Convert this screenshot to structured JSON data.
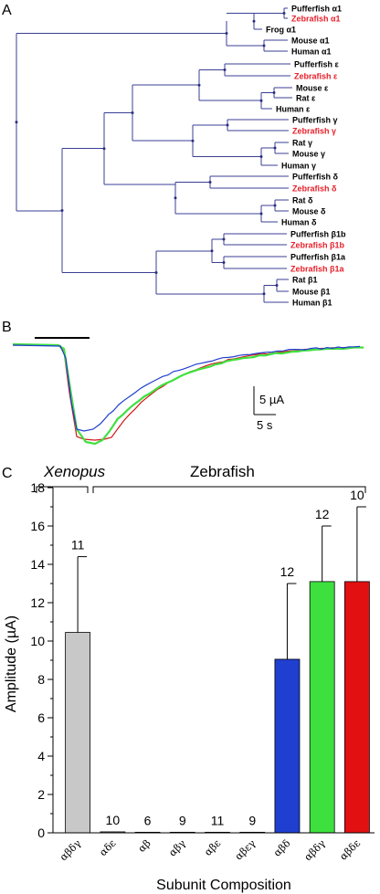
{
  "panels": {
    "a": "A",
    "b": "B",
    "c": "C"
  },
  "tree": {
    "leaves": [
      {
        "text": "Pufferfish α1",
        "color": "#000000"
      },
      {
        "text": "Zebrafish α1",
        "color": "#e8202a"
      },
      {
        "text": "Frog α1",
        "color": "#000000"
      },
      {
        "text": "Mouse α1",
        "color": "#000000"
      },
      {
        "text": "Human α1",
        "color": "#000000"
      },
      {
        "text": "Pufferfish ε",
        "color": "#000000"
      },
      {
        "text": "Zebrafish ε",
        "color": "#e8202a"
      },
      {
        "text": "Mouse ε",
        "color": "#000000"
      },
      {
        "text": "Rat ε",
        "color": "#000000"
      },
      {
        "text": "Human ε",
        "color": "#000000"
      },
      {
        "text": "Pufferfish γ",
        "color": "#000000"
      },
      {
        "text": "Zebrafish γ",
        "color": "#e8202a"
      },
      {
        "text": "Rat γ",
        "color": "#000000"
      },
      {
        "text": "Mouse γ",
        "color": "#000000"
      },
      {
        "text": "Human γ",
        "color": "#000000"
      },
      {
        "text": "Pufferfish δ",
        "color": "#000000"
      },
      {
        "text": "Zebrafish δ",
        "color": "#e8202a"
      },
      {
        "text": "Rat δ",
        "color": "#000000"
      },
      {
        "text": "Mouse δ",
        "color": "#000000"
      },
      {
        "text": "Human δ",
        "color": "#000000"
      },
      {
        "text": "Pufferfish β1b",
        "color": "#000000"
      },
      {
        "text": "Zebrafish β1b",
        "color": "#e8202a"
      },
      {
        "text": "Pufferfish β1a",
        "color": "#000000"
      },
      {
        "text": "Zebrafish β1a",
        "color": "#e8202a"
      },
      {
        "text": "Rat β1",
        "color": "#000000"
      },
      {
        "text": "Mouse β1",
        "color": "#000000"
      },
      {
        "text": "Human β1",
        "color": "#000000"
      }
    ]
  },
  "traces": {
    "scale_current": "5 µA",
    "scale_time": "5 s",
    "colors": [
      "#1f3fd0",
      "#40e040",
      "#d01818"
    ]
  },
  "chart_data": {
    "type": "bar",
    "ylabel": "Amplitude (µA)",
    "xlabel": "Subunit Composition",
    "ylim": [
      0,
      18
    ],
    "yticks": [
      0,
      2,
      4,
      6,
      8,
      10,
      12,
      14,
      16,
      18
    ],
    "groups": [
      {
        "label": "Xenopus",
        "italic": true
      },
      {
        "label": "Zebrafish",
        "italic": false
      }
    ],
    "categories": [
      "αβδγ",
      "αδε",
      "αβ",
      "αβγ",
      "αβε",
      "αβεγ",
      "αβδ",
      "αβδγ",
      "αβδε"
    ],
    "values": [
      10.45,
      0.05,
      0.03,
      0.03,
      0.03,
      0.03,
      9.05,
      13.1,
      13.1
    ],
    "error_upper": [
      14.4,
      0.05,
      0.03,
      0.03,
      0.03,
      0.03,
      13.0,
      16.0,
      17.0
    ],
    "n": [
      "11",
      "10",
      "6",
      "9",
      "11",
      "9",
      "12",
      "12",
      "10"
    ],
    "colors": [
      "#c8c8c8",
      "#c8c8c8",
      "#c8c8c8",
      "#c8c8c8",
      "#c8c8c8",
      "#c8c8c8",
      "#1f3fd0",
      "#3ee03e",
      "#e21010"
    ]
  }
}
